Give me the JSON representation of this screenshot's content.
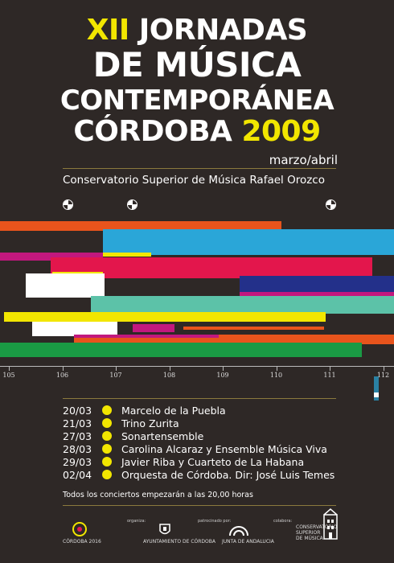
{
  "title": {
    "line1_num": "XII",
    "line1_rest": " JORNADAS",
    "line2": "DE MÚSICA",
    "line3": "CONTEMPORÁNEA",
    "line4_city": "CÓRDOBA ",
    "line4_year": "2009"
  },
  "subtitle": "marzo/abril",
  "venue": "Conservatorio Superior de Música Rafael Orozco",
  "axis_ticks": [
    "105",
    "106",
    "107",
    "108",
    "109",
    "110",
    "111",
    "112"
  ],
  "concerts": [
    {
      "date": "20/03",
      "name": "Marcelo de la Puebla"
    },
    {
      "date": "21/03",
      "name": "Trino Zurita"
    },
    {
      "date": "27/03",
      "name": "Sonartensemble"
    },
    {
      "date": "28/03",
      "name": "Carolina Alcaraz y Ensemble Música Viva"
    },
    {
      "date": "29/03",
      "name": "Javier Riba y Cuarteto de La Habana"
    },
    {
      "date": "02/04",
      "name": "Orquesta de Córdoba. Dir: José Luis Temes"
    }
  ],
  "note": "Todos los conciertos empezarán a las 20,00 horas",
  "footer": {
    "logo_cordoba": "CÓRDOBA 2016",
    "label_organiza": "organiza:",
    "logo_ayuntamiento": "AYUNTAMIENTO DE CÓRDOBA",
    "label_patrocinado": "patrocinado por:",
    "logo_junta": "JUNTA DE ANDALUCIA",
    "label_colabora": "colabora:",
    "logo_conservatorio": "CONSERVATORIO SUPERIOR DE MÚSICA"
  },
  "colors": {
    "background": "#2e2826",
    "accent_yellow": "#f2e600",
    "orange": "#e8541c",
    "cyan": "#2aa6d8",
    "magenta": "#c2187e",
    "red_pink": "#e3164c",
    "navy": "#23308a",
    "teal": "#5cc2a8",
    "green": "#1a9a44"
  }
}
